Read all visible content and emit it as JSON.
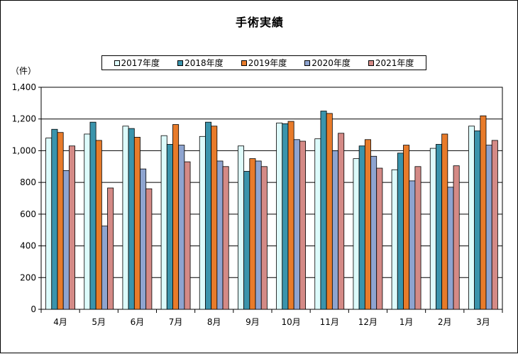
{
  "chart_data": {
    "type": "bar",
    "title": "手術実績",
    "unit_label": "（件）",
    "categories": [
      "4月",
      "5月",
      "6月",
      "7月",
      "8月",
      "9月",
      "10月",
      "11月",
      "12月",
      "1月",
      "2月",
      "3月"
    ],
    "series": [
      {
        "name": "2017年度",
        "color": "#ddfbfb",
        "values": [
          1080,
          1105,
          1155,
          1095,
          1090,
          1030,
          1175,
          1075,
          950,
          880,
          1015,
          1155
        ]
      },
      {
        "name": "2018年度",
        "color": "#3a94ac",
        "values": [
          1135,
          1180,
          1140,
          1040,
          1180,
          870,
          1170,
          1250,
          1030,
          985,
          1040,
          1125
        ]
      },
      {
        "name": "2019年度",
        "color": "#e87b2a",
        "values": [
          1115,
          1065,
          1085,
          1165,
          1155,
          950,
          1185,
          1235,
          1070,
          1035,
          1105,
          1220
        ]
      },
      {
        "name": "2020年度",
        "color": "#8ea4d0",
        "values": [
          875,
          525,
          885,
          1035,
          935,
          935,
          1070,
          1000,
          965,
          810,
          770,
          1035
        ]
      },
      {
        "name": "2021年度",
        "color": "#d48a86",
        "values": [
          1030,
          765,
          760,
          930,
          900,
          900,
          1060,
          1110,
          890,
          900,
          905,
          1065
        ]
      }
    ],
    "y_ticks": [
      "0",
      "200",
      "400",
      "600",
      "800",
      "1,000",
      "1,200",
      "1,400"
    ],
    "ylim": [
      0,
      1400
    ],
    "grid": true,
    "legend_position": "top"
  }
}
